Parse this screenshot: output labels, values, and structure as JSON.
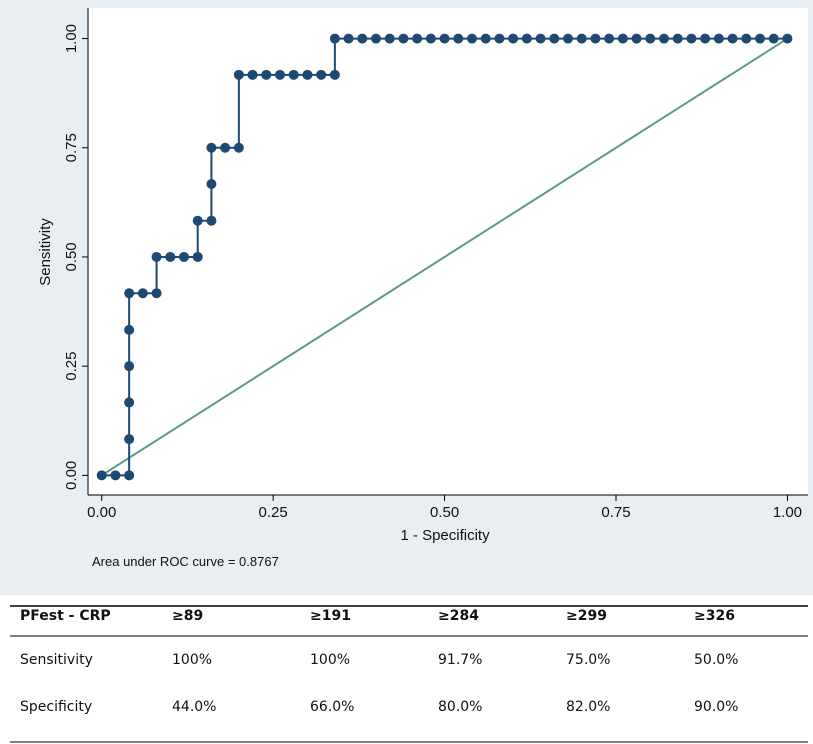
{
  "chart_data": {
    "type": "line",
    "xlabel": "1 - Specificity",
    "ylabel": "Sensitivity",
    "annotation": "Area under ROC curve = 0.8767",
    "xlim": [
      -0.02,
      1.03
    ],
    "ylim": [
      -0.045,
      1.07
    ],
    "xticks": [
      {
        "value": 0,
        "label": "0.00"
      },
      {
        "value": 0.25,
        "label": "0.25"
      },
      {
        "value": 0.5,
        "label": "0.50"
      },
      {
        "value": 0.75,
        "label": "0.75"
      },
      {
        "value": 1,
        "label": "1.00"
      }
    ],
    "yticks": [
      {
        "value": 0,
        "label": "0.00"
      },
      {
        "value": 0.25,
        "label": "0.25"
      },
      {
        "value": 0.5,
        "label": "0.50"
      },
      {
        "value": 0.75,
        "label": "0.75"
      },
      {
        "value": 1,
        "label": "1.00"
      }
    ],
    "series": [
      {
        "color": "#1d4a72",
        "markers": true,
        "x": [
          0,
          0.02,
          0.04,
          0.04,
          0.04,
          0.04,
          0.04,
          0.04,
          0.06,
          0.08,
          0.08,
          0.1,
          0.12,
          0.14,
          0.14,
          0.16,
          0.16,
          0.16,
          0.18,
          0.2,
          0.2,
          0.22,
          0.24,
          0.26,
          0.28,
          0.3,
          0.32,
          0.34,
          0.34,
          0.36,
          0.38,
          0.4,
          0.42,
          0.44,
          0.46,
          0.48,
          0.5,
          0.52,
          0.54,
          0.56,
          0.58,
          0.6,
          0.62,
          0.64,
          0.66,
          0.68,
          0.7,
          0.72,
          0.74,
          0.76,
          0.78,
          0.8,
          0.82,
          0.84,
          0.86,
          0.88,
          0.9,
          0.92,
          0.94,
          0.96,
          0.98,
          1
        ],
        "values": [
          0,
          0,
          0,
          0.083,
          0.167,
          0.25,
          0.333,
          0.417,
          0.417,
          0.417,
          0.5,
          0.5,
          0.5,
          0.5,
          0.583,
          0.583,
          0.667,
          0.75,
          0.75,
          0.75,
          0.917,
          0.917,
          0.917,
          0.917,
          0.917,
          0.917,
          0.917,
          0.917,
          1,
          1,
          1,
          1,
          1,
          1,
          1,
          1,
          1,
          1,
          1,
          1,
          1,
          1,
          1,
          1,
          1,
          1,
          1,
          1,
          1,
          1,
          1,
          1,
          1,
          1,
          1,
          1,
          1,
          1,
          1,
          1,
          1,
          1
        ]
      },
      {
        "color": "#5b9a8b",
        "markers": false,
        "x": [
          0,
          1
        ],
        "values": [
          0,
          1
        ]
      }
    ]
  },
  "table": {
    "header": [
      "PFest - CRP",
      "≥89",
      "≥191",
      "≥284",
      "≥299",
      "≥326"
    ],
    "rows": [
      [
        "Sensitivity",
        "100%",
        "100%",
        "91.7%",
        "75.0%",
        "50.0%"
      ],
      [
        "Specificity",
        "44.0%",
        "66.0%",
        "80.0%",
        "82.0%",
        "90.0%"
      ]
    ]
  }
}
